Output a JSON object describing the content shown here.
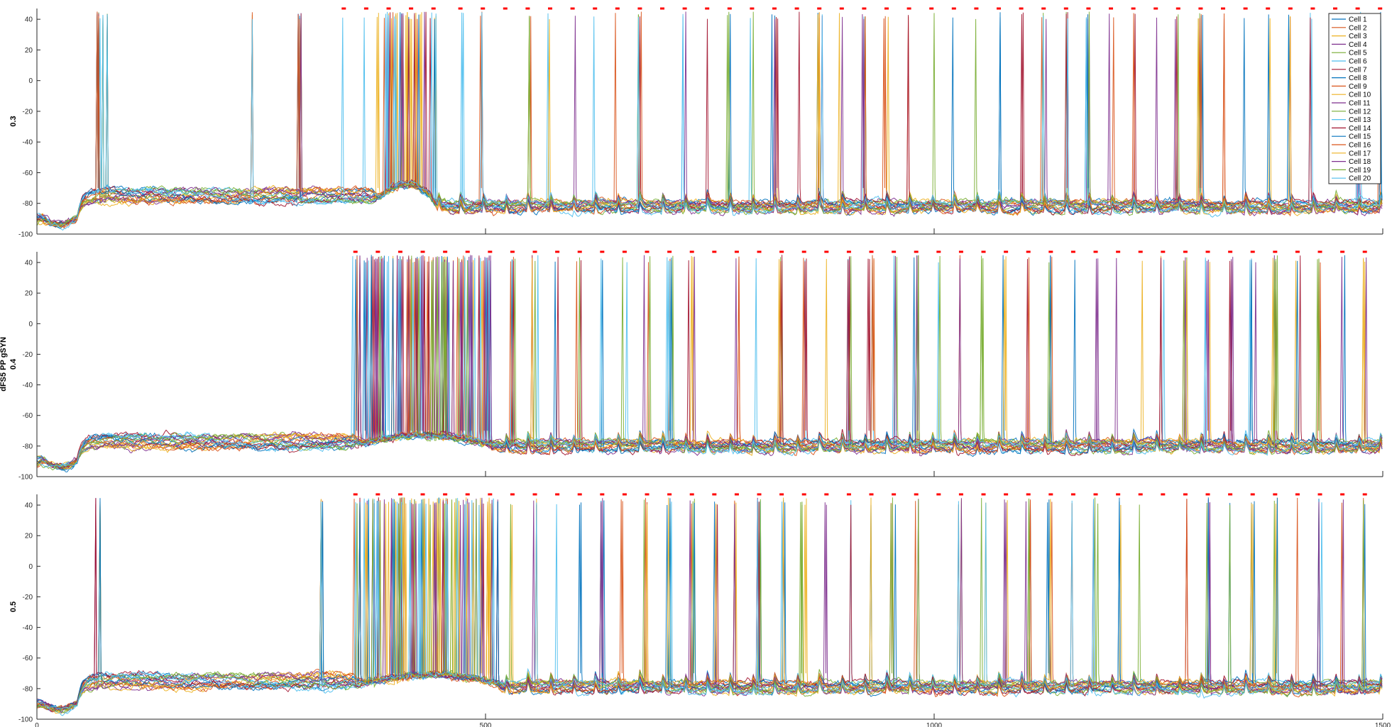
{
  "figure": {
    "shared_ylabel": "dFS5 PP gSYN"
  },
  "chart_data": {
    "type": "line",
    "xlim": [
      0,
      1500
    ],
    "ylim": [
      -100,
      45
    ],
    "x_ticks": [
      0,
      500,
      1000,
      1500
    ],
    "y_ticks": [
      -100,
      -80,
      -60,
      -40,
      -20,
      0,
      20,
      40
    ],
    "legend": {
      "position": "top-right",
      "entries": [
        "Cell 1",
        "Cell 2",
        "Cell 3",
        "Cell 4",
        "Cell 5",
        "Cell 6",
        "Cell 7",
        "Cell 8",
        "Cell 9",
        "Cell 10",
        "Cell 11",
        "Cell 12",
        "Cell 13",
        "Cell 14",
        "Cell 15",
        "Cell 16",
        "Cell 17",
        "Cell 18",
        "Cell 19",
        "Cell 20"
      ]
    },
    "series_colors": [
      "#0072BD",
      "#D95319",
      "#EDB120",
      "#7E2F8E",
      "#77AC30",
      "#4DBEEE",
      "#A2142F",
      "#0072BD",
      "#D95319",
      "#EDB120",
      "#7E2F8E",
      "#77AC30",
      "#4DBEEE",
      "#A2142F",
      "#0072BD",
      "#D95319",
      "#EDB120",
      "#7E2F8E",
      "#77AC30",
      "#4DBEEE"
    ],
    "marker_color": "#FF0000",
    "panels": [
      {
        "ylabel": "0.3",
        "baseline_pre": -75,
        "baseline_post": -82,
        "transition_x": [
          375,
          440
        ],
        "early_spikes_x": [
          68,
          71,
          74,
          78,
          240,
          292,
          294
        ],
        "marker_y": 47,
        "marker_x": [
          342,
          367,
          392,
          417,
          442,
          472,
          497,
          522,
          547,
          572,
          597,
          622,
          647,
          672,
          697,
          722,
          747,
          772,
          797,
          822,
          847,
          872,
          897,
          922,
          947,
          972,
          997,
          1022,
          1047,
          1072,
          1097,
          1122,
          1147,
          1172,
          1197,
          1222,
          1247,
          1272,
          1297,
          1322,
          1347,
          1372,
          1397,
          1422,
          1447,
          1472,
          1497
        ]
      },
      {
        "ylabel": "0.4",
        "baseline_pre": -77,
        "baseline_post": -80,
        "transition_x": [
          355,
          505
        ],
        "early_spikes_x": [],
        "marker_y": 47,
        "marker_x": [
          355,
          380,
          405,
          430,
          455,
          480,
          505,
          530,
          555,
          580,
          605,
          630,
          655,
          680,
          705,
          730,
          755,
          780,
          805,
          830,
          855,
          880,
          905,
          930,
          955,
          980,
          1005,
          1030,
          1055,
          1080,
          1105,
          1130,
          1155,
          1180,
          1205,
          1230,
          1255,
          1280,
          1305,
          1330,
          1355,
          1380,
          1405,
          1430,
          1455,
          1480
        ]
      },
      {
        "ylabel": "0.5",
        "baseline_pre": -75,
        "baseline_post": -79,
        "transition_x": [
          355,
          515
        ],
        "early_spikes_x": [
          66,
          70,
          317,
          319
        ],
        "marker_y": 47,
        "marker_x": [
          355,
          380,
          405,
          430,
          455,
          480,
          505,
          530,
          555,
          580,
          605,
          630,
          655,
          680,
          705,
          730,
          755,
          780,
          805,
          830,
          855,
          880,
          905,
          930,
          955,
          980,
          1005,
          1030,
          1055,
          1080,
          1105,
          1130,
          1155,
          1180,
          1205,
          1230,
          1255,
          1280,
          1305,
          1330,
          1355,
          1380,
          1405,
          1430,
          1455,
          1480
        ]
      }
    ]
  }
}
